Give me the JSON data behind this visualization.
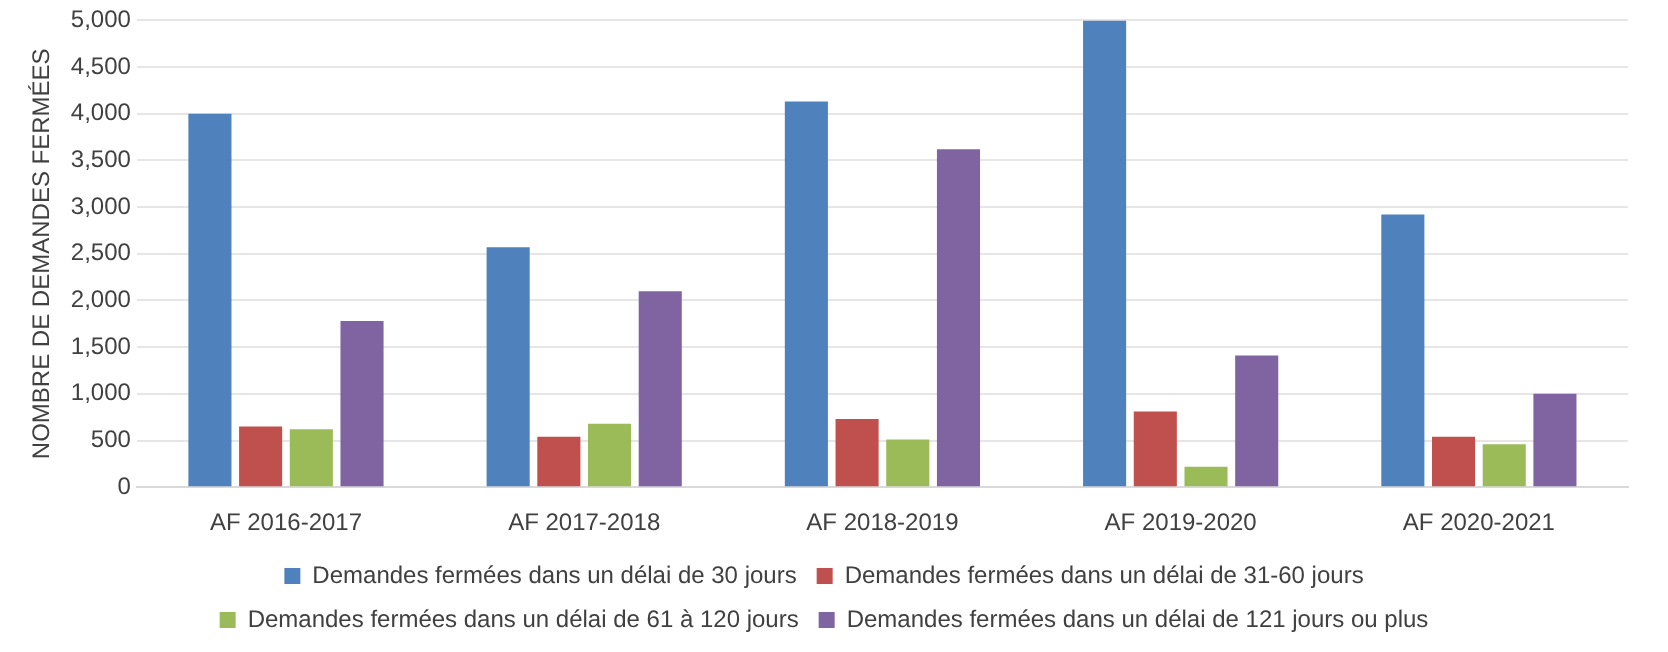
{
  "chart_data": {
    "type": "bar",
    "ylabel": "NOMBRE DE DEMANDES FERMÉES",
    "categories": [
      "AF 2016-2017",
      "AF 2017-2018",
      "AF 2018-2019",
      "AF 2019-2020",
      "AF 2020-2021"
    ],
    "series": [
      {
        "name": "Demandes fermées dans un délai de 30 jours",
        "color": "#4f81bd",
        "values": [
          4000,
          2570,
          4130,
          5000,
          2920
        ]
      },
      {
        "name": "Demandes fermées dans un délai de 31-60 jours",
        "color": "#c0504d",
        "values": [
          650,
          540,
          730,
          810,
          540
        ]
      },
      {
        "name": "Demandes fermées dans un délai de 61 à 120 jours",
        "color": "#9bbb59",
        "values": [
          620,
          680,
          510,
          220,
          460
        ]
      },
      {
        "name": "Demandes fermées dans un délai de 121 jours ou plus",
        "color": "#8064a2",
        "values": [
          1780,
          2100,
          3620,
          1410,
          1000
        ]
      }
    ],
    "ylim": [
      0,
      5000
    ],
    "yticks": [
      0,
      500,
      {
        "value": 1000,
        "label": "1,000"
      },
      {
        "value": 1500,
        "label": "1,500"
      },
      {
        "value": 2000,
        "label": "2,000"
      },
      {
        "value": 2500,
        "label": "2,500"
      },
      {
        "value": 3000,
        "label": "3,000"
      },
      {
        "value": 3500,
        "label": "3,500"
      },
      {
        "value": 4000,
        "label": "4,000"
      },
      {
        "value": 4500,
        "label": "4,500"
      },
      {
        "value": 5000,
        "label": "5,000"
      }
    ],
    "grid": "y",
    "legend": "bottom"
  }
}
